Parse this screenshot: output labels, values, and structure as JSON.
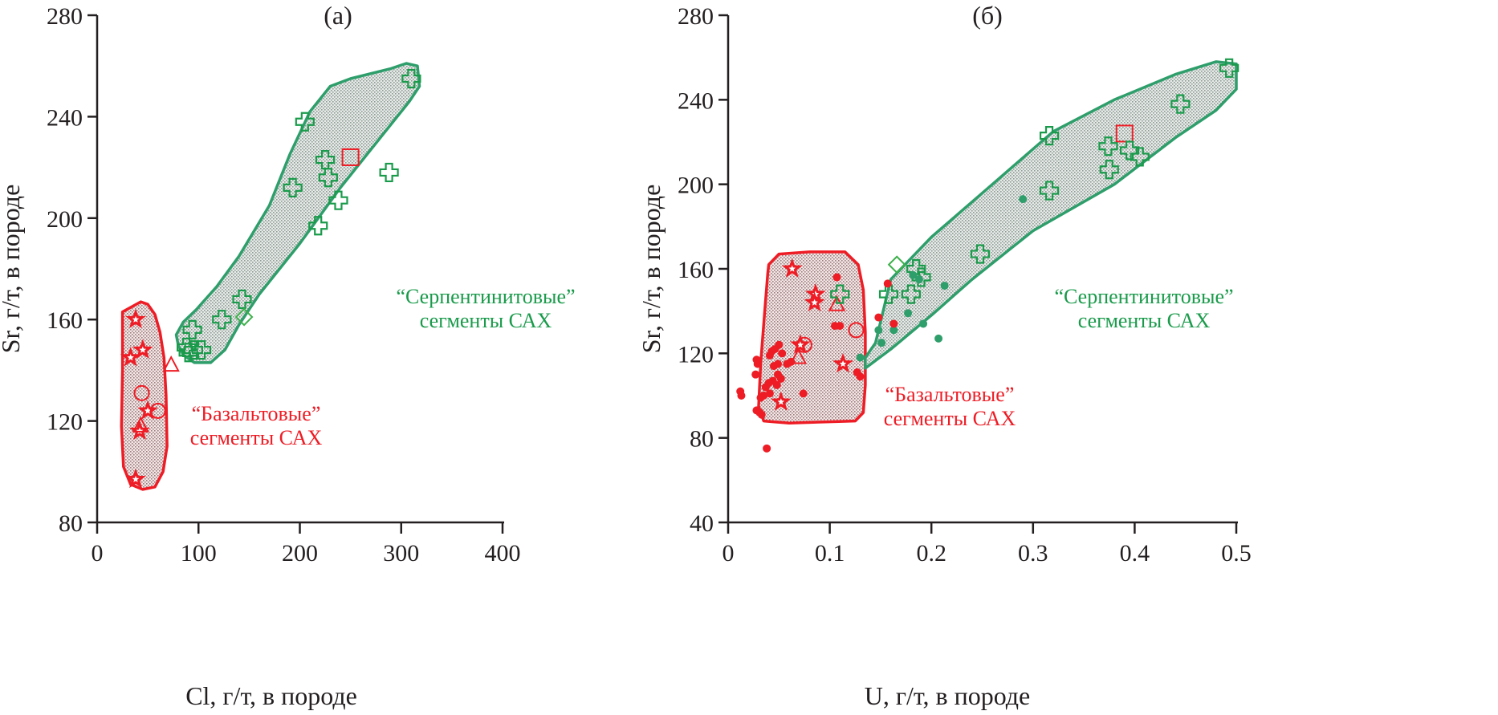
{
  "colors": {
    "red": "#ee1c25",
    "green": "#1a9b4b",
    "green_outline": "#2e9e6b",
    "red_fill": "#e8cfcf",
    "green_fill": "#d3dcd6",
    "axis": "#231f20"
  },
  "chart_data": [
    {
      "id": "a",
      "type": "scatter",
      "title": "(а)",
      "xlabel": "Cl, г/т, в породе",
      "ylabel": "Sr, г/т, в породе",
      "xlim": [
        0,
        400
      ],
      "ylim": [
        80,
        280
      ],
      "xticks": [
        0,
        100,
        200,
        300,
        400
      ],
      "yticks": [
        80,
        120,
        160,
        200,
        240,
        280
      ],
      "xtick_labels": [
        "0",
        "100",
        "200",
        "300",
        "400"
      ],
      "ytick_labels": [
        "80",
        "120",
        "160",
        "200",
        "240",
        "280"
      ],
      "grid": false,
      "annotations": [
        {
          "text_line1": "“Серпентинитовые”",
          "text_line2": "сегменты САХ",
          "color": "green",
          "x": 320,
          "y": 160
        },
        {
          "text_line1": "“Базальтовые”",
          "text_line2": "сегменты САХ",
          "color": "red",
          "x": 125,
          "y": 121
        }
      ],
      "regions": [
        {
          "name": "basalt-field",
          "color": "red",
          "polygon": [
            [
              25,
              163
            ],
            [
              43,
              167
            ],
            [
              50,
              166
            ],
            [
              57,
              162
            ],
            [
              62,
              155
            ],
            [
              66,
              145
            ],
            [
              68,
              130
            ],
            [
              69,
              110
            ],
            [
              65,
              100
            ],
            [
              57,
              94
            ],
            [
              45,
              93
            ],
            [
              33,
              95
            ],
            [
              26,
              102
            ],
            [
              24,
              118
            ],
            [
              25,
              140
            ],
            [
              25,
              163
            ]
          ]
        },
        {
          "name": "serpentinite-field",
          "color": "green",
          "polygon": [
            [
              78,
              154
            ],
            [
              80,
              150
            ],
            [
              85,
              146
            ],
            [
              96,
              143
            ],
            [
              112,
              143
            ],
            [
              126,
              148
            ],
            [
              140,
              158
            ],
            [
              160,
              170
            ],
            [
              200,
              190
            ],
            [
              240,
              212
            ],
            [
              280,
              232
            ],
            [
              308,
              246
            ],
            [
              318,
              252
            ],
            [
              316,
              260
            ],
            [
              305,
              261
            ],
            [
              290,
              259
            ],
            [
              250,
              255
            ],
            [
              230,
              252
            ],
            [
              210,
              242
            ],
            [
              190,
              225
            ],
            [
              170,
              205
            ],
            [
              140,
              185
            ],
            [
              118,
              173
            ],
            [
              98,
              164
            ],
            [
              85,
              159
            ],
            [
              78,
              154
            ]
          ]
        }
      ],
      "series": [
        {
          "name": "basalt-stars",
          "marker": "star",
          "color": "red",
          "points": [
            [
              38,
              160
            ],
            [
              45,
              148
            ],
            [
              33,
              145
            ],
            [
              50,
              124
            ],
            [
              42,
              116
            ],
            [
              38,
              97
            ]
          ]
        },
        {
          "name": "basalt-circles",
          "marker": "circle",
          "color": "red",
          "points": [
            [
              44,
              131
            ],
            [
              60,
              124
            ]
          ]
        },
        {
          "name": "basalt-triangles",
          "marker": "triangle",
          "color": "red",
          "points": [
            [
              73,
              142
            ],
            [
              43,
              118
            ]
          ]
        },
        {
          "name": "square",
          "marker": "square",
          "color": "red",
          "points": [
            [
              250,
              224
            ]
          ]
        },
        {
          "name": "serpentinite-crosses",
          "marker": "cross",
          "color": "green",
          "points": [
            [
              310,
              255
            ],
            [
              205,
              238
            ],
            [
              225,
              223
            ],
            [
              228,
              216
            ],
            [
              288,
              218
            ],
            [
              193,
              212
            ],
            [
              238,
              207
            ],
            [
              218,
              197
            ],
            [
              143,
              168
            ],
            [
              123,
              160
            ],
            [
              94,
              156
            ],
            [
              88,
              149
            ],
            [
              95,
              148
            ],
            [
              103,
              148
            ],
            [
              90,
              147
            ]
          ]
        },
        {
          "name": "diamond",
          "marker": "diamond",
          "color": "green",
          "points": [
            [
              145,
              161
            ]
          ]
        }
      ]
    },
    {
      "id": "b",
      "type": "scatter",
      "title": "(б)",
      "xlabel": "U, г/т, в породе",
      "ylabel": "Sr, г/т, в породе",
      "xlim": [
        0,
        0.5
      ],
      "ylim": [
        40,
        280
      ],
      "xticks": [
        0,
        0.1,
        0.2,
        0.3,
        0.4,
        0.5
      ],
      "yticks": [
        40,
        80,
        120,
        160,
        200,
        240,
        280
      ],
      "xtick_labels": [
        "0",
        "0.1",
        "0.2",
        "0.3",
        "0.4",
        "0.5"
      ],
      "ytick_labels": [
        "40",
        "80",
        "120",
        "160",
        "200",
        "240",
        "280"
      ],
      "grid": false,
      "annotations": [
        {
          "text_line1": "“Серпентинитовые”",
          "text_line2": "сегменты САХ",
          "color": "green",
          "x": 0.43,
          "y": 147
        },
        {
          "text_line1": "“Базальтовые”",
          "text_line2": "сегменты САХ",
          "color": "red",
          "x": 0.2,
          "y": 94
        }
      ],
      "regions": [
        {
          "name": "basalt-field",
          "color": "red",
          "polygon": [
            [
              0.04,
              162
            ],
            [
              0.05,
              167
            ],
            [
              0.08,
              168
            ],
            [
              0.115,
              168
            ],
            [
              0.128,
              162
            ],
            [
              0.133,
              150
            ],
            [
              0.135,
              130
            ],
            [
              0.135,
              105
            ],
            [
              0.133,
              92
            ],
            [
              0.125,
              88
            ],
            [
              0.06,
              87
            ],
            [
              0.035,
              88
            ],
            [
              0.03,
              95
            ],
            [
              0.032,
              115
            ],
            [
              0.036,
              140
            ],
            [
              0.039,
              158
            ],
            [
              0.04,
              162
            ]
          ]
        },
        {
          "name": "serpentinite-field",
          "color": "green",
          "polygon": [
            [
              0.135,
              118
            ],
            [
              0.145,
              125
            ],
            [
              0.16,
              155
            ],
            [
              0.2,
              175
            ],
            [
              0.26,
              200
            ],
            [
              0.32,
              225
            ],
            [
              0.38,
              240
            ],
            [
              0.44,
              252
            ],
            [
              0.48,
              258
            ],
            [
              0.5,
              257
            ],
            [
              0.5,
              245
            ],
            [
              0.48,
              235
            ],
            [
              0.44,
              222
            ],
            [
              0.38,
              200
            ],
            [
              0.3,
              178
            ],
            [
              0.24,
              155
            ],
            [
              0.2,
              138
            ],
            [
              0.16,
              122
            ],
            [
              0.135,
              113
            ],
            [
              0.135,
              118
            ]
          ]
        }
      ],
      "series": [
        {
          "name": "basalt-stars",
          "marker": "star",
          "color": "red",
          "points": [
            [
              0.063,
              160
            ],
            [
              0.086,
              148
            ],
            [
              0.085,
              144
            ],
            [
              0.071,
              124
            ],
            [
              0.113,
              115
            ],
            [
              0.052,
              97
            ]
          ]
        },
        {
          "name": "basalt-circles",
          "marker": "circle",
          "color": "red",
          "points": [
            [
              0.075,
              124
            ],
            [
              0.126,
              131
            ]
          ]
        },
        {
          "name": "basalt-triangles",
          "marker": "triangle",
          "color": "red",
          "points": [
            [
              0.107,
              143
            ],
            [
              0.069,
              118
            ]
          ]
        },
        {
          "name": "square",
          "marker": "square",
          "color": "red",
          "points": [
            [
              0.39,
              224
            ]
          ]
        },
        {
          "name": "serpentinite-crosses",
          "marker": "cross",
          "color": "green",
          "points": [
            [
              0.493,
              255
            ],
            [
              0.445,
              238
            ],
            [
              0.316,
              223
            ],
            [
              0.374,
              218
            ],
            [
              0.395,
              216
            ],
            [
              0.405,
              213
            ],
            [
              0.375,
              207
            ],
            [
              0.316,
              197
            ],
            [
              0.248,
              167
            ],
            [
              0.185,
              160
            ],
            [
              0.19,
              156
            ],
            [
              0.158,
              148
            ],
            [
              0.18,
              148
            ],
            [
              0.11,
              148
            ]
          ]
        },
        {
          "name": "diamond",
          "marker": "diamond",
          "color": "green",
          "points": [
            [
              0.166,
              162
            ]
          ]
        },
        {
          "name": "green-dots",
          "marker": "dot",
          "color": "green",
          "points": [
            [
              0.29,
              193
            ],
            [
              0.182,
              157
            ],
            [
              0.188,
              155
            ],
            [
              0.213,
              152
            ],
            [
              0.177,
              139
            ],
            [
              0.192,
              134
            ],
            [
              0.148,
              131
            ],
            [
              0.163,
              131
            ],
            [
              0.207,
              127
            ],
            [
              0.151,
              125
            ],
            [
              0.13,
              118
            ]
          ]
        },
        {
          "name": "red-dots",
          "marker": "dot",
          "color": "red",
          "points": [
            [
              0.107,
              156
            ],
            [
              0.157,
              153
            ],
            [
              0.148,
              137
            ],
            [
              0.163,
              134
            ],
            [
              0.11,
              133
            ],
            [
              0.105,
              133
            ],
            [
              0.05,
              124
            ],
            [
              0.046,
              122
            ],
            [
              0.043,
              121
            ],
            [
              0.053,
              120
            ],
            [
              0.041,
              119
            ],
            [
              0.062,
              116
            ],
            [
              0.058,
              115
            ],
            [
              0.049,
              115
            ],
            [
              0.045,
              114
            ],
            [
              0.028,
              117
            ],
            [
              0.029,
              115
            ],
            [
              0.027,
              110
            ],
            [
              0.049,
              110
            ],
            [
              0.052,
              108
            ],
            [
              0.044,
              107
            ],
            [
              0.04,
              106
            ],
            [
              0.048,
              105
            ],
            [
              0.037,
              104
            ],
            [
              0.041,
              101
            ],
            [
              0.035,
              100
            ],
            [
              0.032,
              99
            ],
            [
              0.012,
              102
            ],
            [
              0.013,
              100
            ],
            [
              0.028,
              93
            ],
            [
              0.031,
              92
            ],
            [
              0.033,
              91
            ],
            [
              0.074,
              101
            ],
            [
              0.13,
              109
            ],
            [
              0.127,
              111
            ],
            [
              0.038,
              75
            ]
          ]
        }
      ]
    }
  ]
}
